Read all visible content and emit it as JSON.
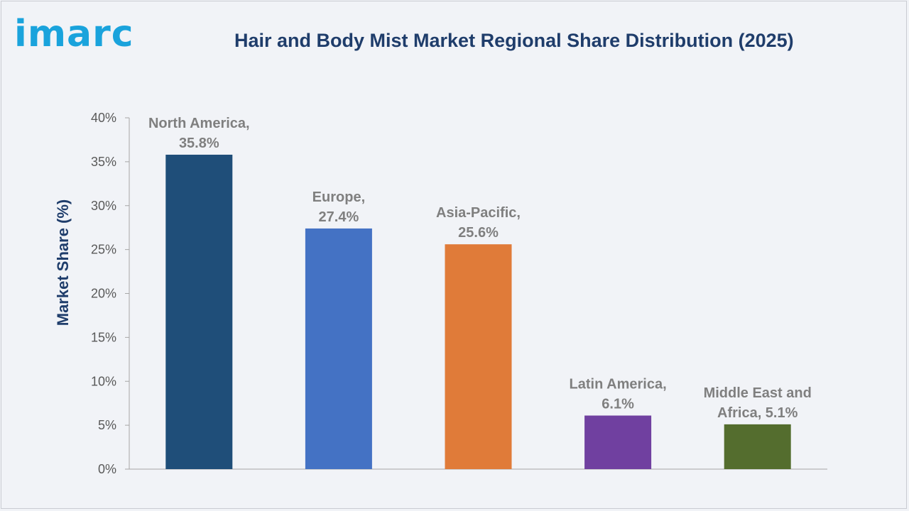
{
  "logo": {
    "text": "imarc",
    "color": "#1aa3dc"
  },
  "chart_data": {
    "type": "bar",
    "title": "Hair and Body Mist Market Regional Share Distribution (2025)",
    "xlabel": "",
    "ylabel": "Market Share (%)",
    "ylim": [
      0,
      40
    ],
    "yticks": [
      0,
      5,
      10,
      15,
      20,
      25,
      30,
      35,
      40
    ],
    "ytick_labels": [
      "0%",
      "5%",
      "10%",
      "15%",
      "20%",
      "25%",
      "30%",
      "35%",
      "40%"
    ],
    "categories": [
      "North America",
      "Europe",
      "Asia-Pacific",
      "Latin America",
      "Middle East and Africa"
    ],
    "values": [
      35.8,
      27.4,
      25.6,
      6.1,
      5.1
    ],
    "data_labels": [
      [
        "North America,",
        "35.8%"
      ],
      [
        "Europe,",
        "27.4%"
      ],
      [
        "Asia-Pacific,",
        "25.6%"
      ],
      [
        "Latin America,",
        "6.1%"
      ],
      [
        "Middle East and",
        "Africa, 5.1%"
      ]
    ],
    "colors": [
      "#1f4e79",
      "#4472c4",
      "#e07b39",
      "#7040a0",
      "#546d2e"
    ],
    "grid": false,
    "legend": "none"
  }
}
